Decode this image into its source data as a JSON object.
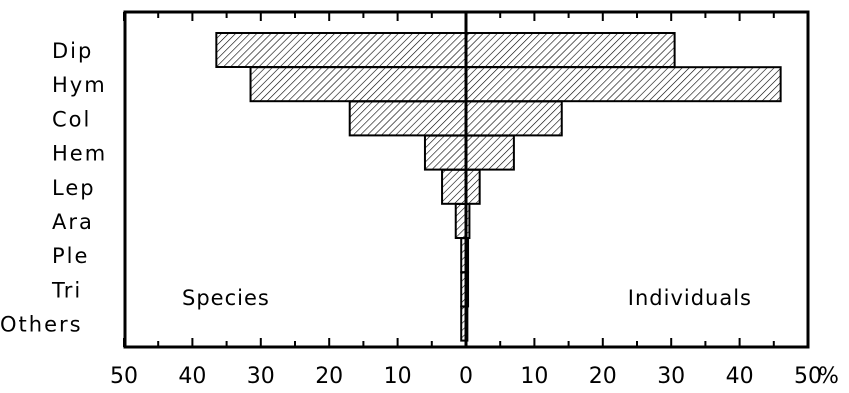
{
  "chart_data": {
    "type": "bar",
    "orientation": "horizontal-diverging",
    "categories": [
      "Dip",
      "Hym",
      "Col",
      "Hem",
      "Lep",
      "Ara",
      "Ple",
      "Tri",
      "Others"
    ],
    "series": [
      {
        "name": "Species",
        "side": "left",
        "values": [
          36.5,
          31.5,
          17,
          6,
          3.5,
          1.5,
          0.7,
          0.7,
          0.7
        ]
      },
      {
        "name": "Individuals",
        "side": "right",
        "values": [
          30.5,
          46,
          14,
          7,
          2,
          0.5,
          0.3,
          0.3,
          0.2
        ]
      }
    ],
    "xlim": [
      -50,
      50
    ],
    "xticks": [
      50,
      40,
      30,
      20,
      10,
      0,
      10,
      20,
      30,
      40,
      50
    ],
    "xtick_values": [
      -50,
      -40,
      -30,
      -20,
      -10,
      0,
      10,
      20,
      30,
      40,
      50
    ],
    "unit": "%",
    "title": "",
    "xlabel": "",
    "ylabel": "",
    "grid": false,
    "legend": "none",
    "bar_fill": "hatched",
    "colors": {
      "ink": "#000000",
      "background": "#ffffff"
    }
  }
}
